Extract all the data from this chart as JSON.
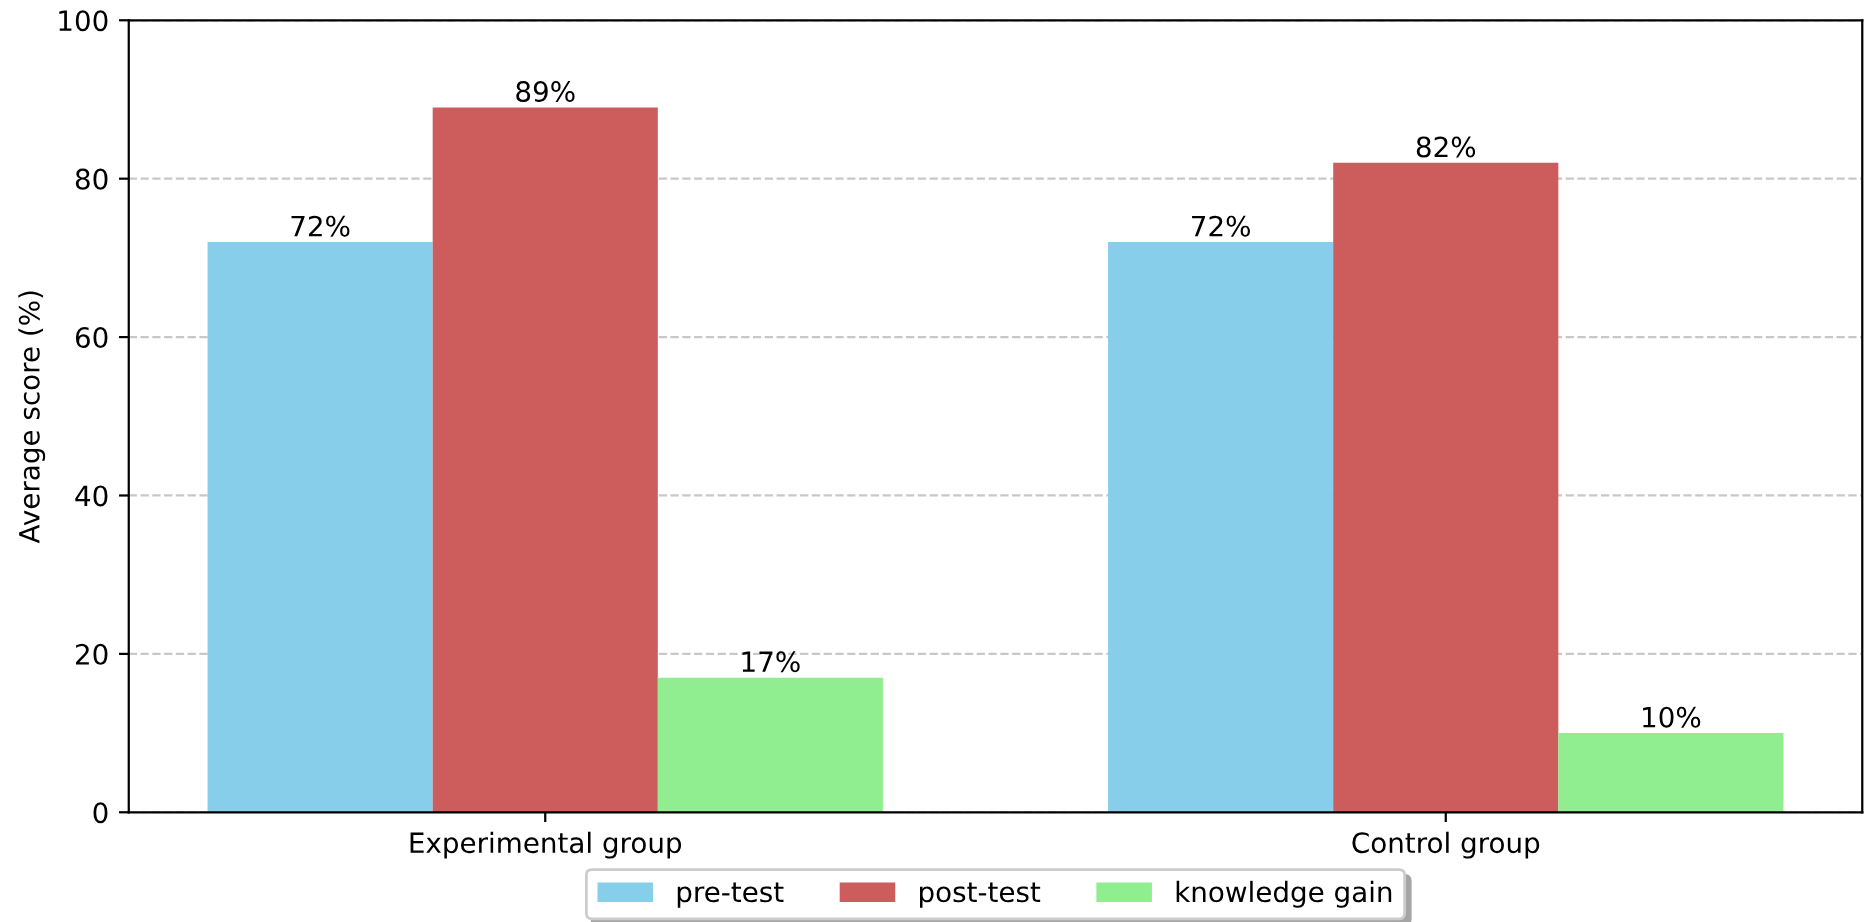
{
  "chart_data": {
    "type": "bar",
    "ylabel": "Average score (%)",
    "categories": [
      "Experimental group",
      "Control group"
    ],
    "series": [
      {
        "name": "pre-test",
        "color": "#87ceeb",
        "values": [
          72,
          72
        ],
        "value_labels": [
          "72%",
          "72%"
        ]
      },
      {
        "name": "post-test",
        "color": "#cd5c5c",
        "values": [
          89,
          82
        ],
        "value_labels": [
          "89%",
          "82%"
        ]
      },
      {
        "name": "knowledge gain",
        "color": "#90ee90",
        "values": [
          17,
          10
        ],
        "value_labels": [
          "17%",
          "10%"
        ]
      }
    ],
    "ylim": [
      0,
      100
    ],
    "yticks": [
      0,
      20,
      40,
      60,
      80,
      100
    ],
    "grid": "y",
    "legend": "bottom"
  }
}
